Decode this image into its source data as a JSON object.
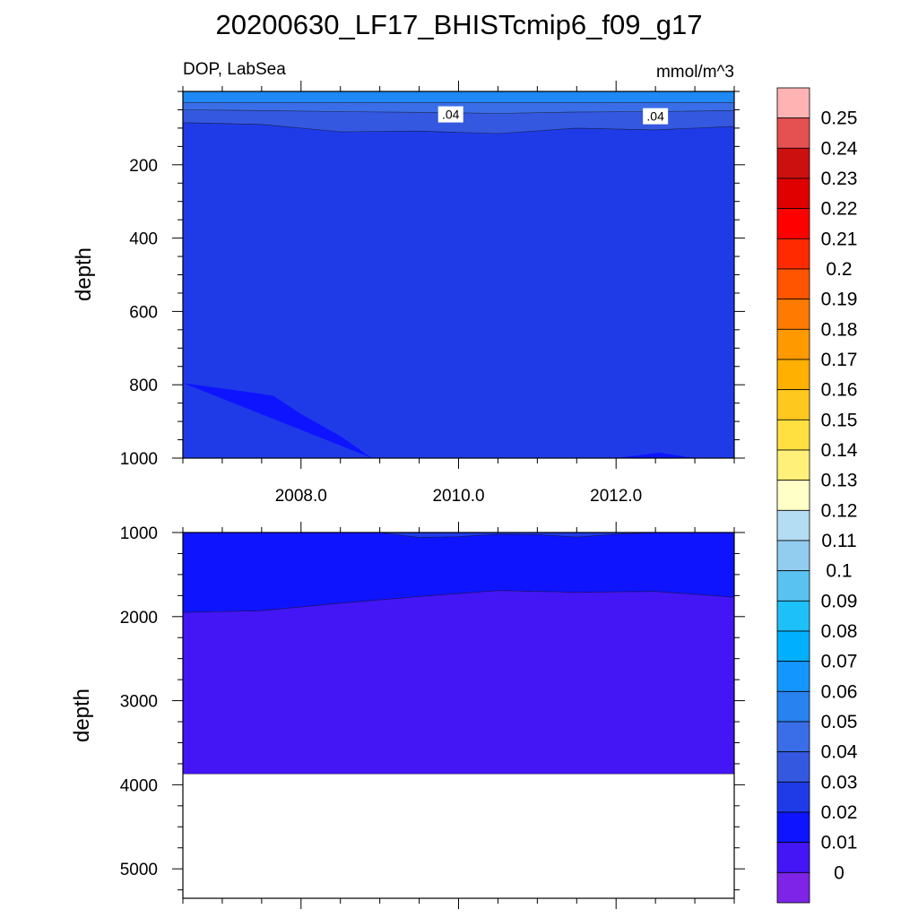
{
  "title": "20200630_LF17_BHISTcmip6_f09_g17",
  "subtitle_left": "DOP, LabSea",
  "subtitle_right": "mmol/m^3",
  "chart_data": [
    {
      "type": "contour",
      "panel": "upper",
      "ylabel": "depth",
      "xlim": [
        2006.5,
        2013.5
      ],
      "ylim": [
        1000,
        0
      ],
      "x_ticks": [
        2008.0,
        2010.0,
        2012.0
      ],
      "x_tick_labels": [
        "2008.0",
        "2010.0",
        "2012.0"
      ],
      "y_ticks": [
        200,
        400,
        600,
        800,
        1000
      ],
      "y_tick_labels": [
        "200",
        "400",
        "600",
        "800",
        "1000"
      ],
      "contour_labels": [
        {
          "text": ".04",
          "x": 2009.9,
          "depth": 65
        },
        {
          "text": ".04",
          "x": 2012.5,
          "depth": 70
        }
      ],
      "regions": [
        {
          "value": 0.05,
          "color": "#1e88f5",
          "top": [
            [
              2006.5,
              0
            ],
            [
              2013.5,
              0
            ]
          ],
          "bottom": [
            [
              2006.5,
              30
            ],
            [
              2013.5,
              30
            ]
          ]
        },
        {
          "value": 0.04,
          "color": "#3a6ee8",
          "top": [
            [
              2006.5,
              30
            ],
            [
              2013.5,
              30
            ]
          ],
          "bottom": [
            [
              2006.5,
              50
            ],
            [
              2007.5,
              52
            ],
            [
              2008.5,
              55
            ],
            [
              2009.5,
              57
            ],
            [
              2010.5,
              60
            ],
            [
              2011.5,
              56
            ],
            [
              2012.5,
              55
            ],
            [
              2013.5,
              52
            ]
          ]
        },
        {
          "value": 0.03,
          "color": "#3558e0",
          "top": [
            [
              2006.5,
              50
            ],
            [
              2007.5,
              52
            ],
            [
              2008.5,
              55
            ],
            [
              2009.5,
              57
            ],
            [
              2010.5,
              60
            ],
            [
              2011.5,
              56
            ],
            [
              2012.5,
              55
            ],
            [
              2013.5,
              52
            ]
          ],
          "bottom": [
            [
              2006.5,
              85
            ],
            [
              2007.5,
              90
            ],
            [
              2008.5,
              110
            ],
            [
              2009.5,
              108
            ],
            [
              2010.5,
              115
            ],
            [
              2011.5,
              100
            ],
            [
              2012.5,
              105
            ],
            [
              2013.5,
              95
            ]
          ]
        },
        {
          "value": 0.02,
          "color": "#1f3be8",
          "top": [
            [
              2006.5,
              85
            ],
            [
              2007.5,
              90
            ],
            [
              2008.5,
              110
            ],
            [
              2009.5,
              108
            ],
            [
              2010.5,
              115
            ],
            [
              2011.5,
              100
            ],
            [
              2012.5,
              105
            ],
            [
              2013.5,
              95
            ]
          ],
          "bottom": [
            [
              2006.5,
              1000
            ],
            [
              2013.5,
              1000
            ]
          ]
        },
        {
          "value": 0.01,
          "color": "#0f14ff",
          "top": [
            [
              2006.5,
              795
            ],
            [
              2007.0,
              810
            ],
            [
              2007.5,
              825
            ],
            [
              2007.65,
              830
            ],
            [
              2008.0,
              880
            ],
            [
              2008.5,
              940
            ],
            [
              2008.9,
              1000
            ]
          ],
          "bottom": [
            [
              2008.9,
              1000
            ],
            [
              2006.5,
              1000
            ]
          ]
        },
        {
          "value": 0.01,
          "color": "#0f14ff",
          "top": [
            [
              2012.0,
              1000
            ],
            [
              2012.55,
              985
            ],
            [
              2013.0,
              1000
            ]
          ],
          "bottom": [
            [
              2013.0,
              1000
            ],
            [
              2012.0,
              1000
            ]
          ]
        }
      ]
    },
    {
      "type": "contour",
      "panel": "lower",
      "ylabel": "depth",
      "xlim": [
        2006.5,
        2013.5
      ],
      "ylim": [
        5350,
        1000
      ],
      "x_ticks": [
        2008.0,
        2010.0,
        2012.0
      ],
      "y_ticks": [
        1000,
        2000,
        3000,
        4000,
        5000
      ],
      "y_tick_labels": [
        "1000",
        "2000",
        "3000",
        "4000",
        "5000"
      ],
      "bottom_of_data": 3870,
      "regions": [
        {
          "value": 0.02,
          "color": "#1f3be8",
          "top": [
            [
              2006.5,
              1000
            ],
            [
              2013.5,
              1000
            ]
          ],
          "bottom": [
            [
              2006.5,
              1000
            ],
            [
              2009.0,
              1000
            ],
            [
              2009.5,
              1060
            ],
            [
              2010.0,
              1050
            ],
            [
              2010.5,
              1020
            ],
            [
              2011.0,
              1025
            ],
            [
              2011.5,
              1055
            ],
            [
              2012.0,
              1020
            ],
            [
              2012.5,
              1000
            ],
            [
              2013.5,
              1000
            ]
          ]
        },
        {
          "value": 0.01,
          "color": "#0f14ff",
          "top": [
            [
              2006.5,
              1000
            ],
            [
              2009.0,
              1000
            ],
            [
              2009.5,
              1060
            ],
            [
              2010.0,
              1050
            ],
            [
              2010.5,
              1020
            ],
            [
              2011.0,
              1025
            ],
            [
              2011.5,
              1055
            ],
            [
              2012.0,
              1020
            ],
            [
              2012.5,
              1000
            ],
            [
              2013.5,
              1000
            ]
          ],
          "bottom": [
            [
              2006.5,
              1950
            ],
            [
              2007.5,
              1930
            ],
            [
              2008.5,
              1840
            ],
            [
              2009.5,
              1760
            ],
            [
              2010.5,
              1690
            ],
            [
              2011.5,
              1710
            ],
            [
              2012.5,
              1700
            ],
            [
              2013.5,
              1770
            ]
          ]
        },
        {
          "value": 0.0,
          "color": "#4415f5",
          "top": [
            [
              2006.5,
              1950
            ],
            [
              2007.5,
              1930
            ],
            [
              2008.5,
              1840
            ],
            [
              2009.5,
              1760
            ],
            [
              2010.5,
              1690
            ],
            [
              2011.5,
              1710
            ],
            [
              2012.5,
              1700
            ],
            [
              2013.5,
              1770
            ]
          ],
          "bottom": [
            [
              2006.5,
              3870
            ],
            [
              2013.5,
              3870
            ]
          ]
        }
      ]
    }
  ],
  "colorbar": {
    "levels": [
      "0.25",
      "0.24",
      "0.23",
      "0.22",
      "0.21",
      "0.2",
      "0.19",
      "0.18",
      "0.17",
      "0.16",
      "0.15",
      "0.14",
      "0.13",
      "0.12",
      "0.11",
      "0.1",
      "0.09",
      "0.08",
      "0.07",
      "0.06",
      "0.05",
      "0.04",
      "0.03",
      "0.02",
      "0.01",
      "0"
    ],
    "colors": [
      "#ffb3b3",
      "#e55050",
      "#cc1010",
      "#e00000",
      "#ff0000",
      "#ff2a00",
      "#ff5500",
      "#ff7a00",
      "#ff9900",
      "#ffb000",
      "#ffc81e",
      "#ffe040",
      "#fff07a",
      "#ffffc8",
      "#b4dcf2",
      "#92ccee",
      "#5ac2f0",
      "#1ec0f8",
      "#00b0ff",
      "#1496ff",
      "#2882f0",
      "#3a6ee8",
      "#3558e0",
      "#1f3be8",
      "#0f14ff",
      "#4415f5",
      "#7d24e6"
    ]
  }
}
